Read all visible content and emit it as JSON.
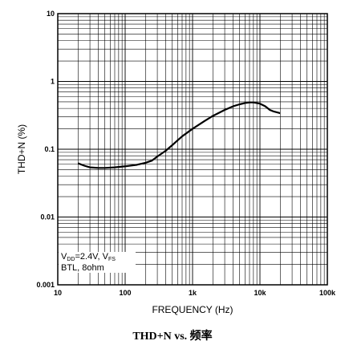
{
  "chart_data": {
    "type": "line",
    "title": "THD+N vs. 频率",
    "xlabel": "FREQUENCY (Hz)",
    "ylabel": "THD+N (%)",
    "xscale": "log",
    "yscale": "log",
    "xlim": [
      10,
      100000
    ],
    "ylim": [
      0.001,
      10
    ],
    "grid": true,
    "x_tick_labels": [
      "10",
      "100",
      "1k",
      "10k",
      "100k"
    ],
    "y_tick_labels": [
      "10",
      "1",
      "0.1",
      "0.01",
      "0.001"
    ],
    "annotation": {
      "line1_main": "V",
      "line1_sub1": "DD",
      "line1_mid": "=2.4V, V",
      "line1_sub2": "FS",
      "line2": "BTL, 8ohm"
    },
    "series": [
      {
        "x": [
          20,
          25,
          30,
          40,
          50,
          70,
          100,
          150,
          200,
          250,
          300,
          400,
          500,
          700,
          1000,
          1500,
          2000,
          3000,
          4000,
          5000,
          6000,
          7000,
          8000,
          9000,
          10000,
          12000,
          14000,
          16000,
          20000
        ],
        "y": [
          0.062,
          0.057,
          0.054,
          0.053,
          0.053,
          0.054,
          0.056,
          0.059,
          0.063,
          0.068,
          0.078,
          0.095,
          0.115,
          0.155,
          0.2,
          0.26,
          0.31,
          0.38,
          0.43,
          0.46,
          0.48,
          0.49,
          0.49,
          0.48,
          0.47,
          0.43,
          0.38,
          0.36,
          0.34
        ]
      }
    ],
    "color": "#000000"
  }
}
